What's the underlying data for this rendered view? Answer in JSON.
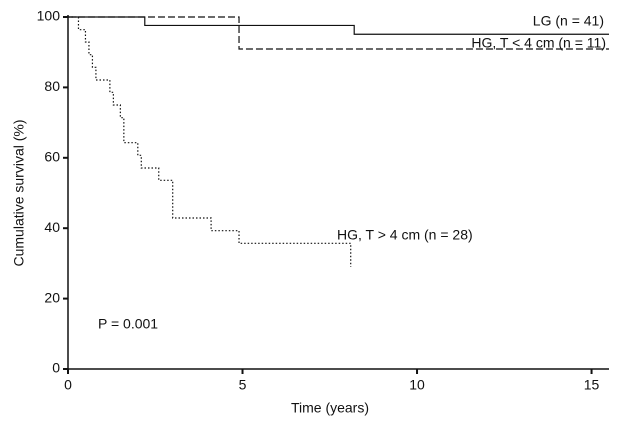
{
  "chart_data": {
    "type": "step",
    "x_label": "Time (years)",
    "y_label": "Cumulative survival (%)",
    "xlim": [
      0,
      15.5
    ],
    "ylim": [
      0,
      100
    ],
    "xticks": [
      0,
      5,
      10,
      15
    ],
    "yticks": [
      0,
      20,
      40,
      60,
      80,
      100
    ],
    "annotation": "P = 0.001",
    "series": [
      {
        "name": "LG (n = 41)",
        "color": "#111111",
        "line_style": "solid",
        "x": [
          0,
          2.2,
          8.2,
          15.5
        ],
        "values": [
          100,
          97.6,
          95.1,
          95.1
        ]
      },
      {
        "name": "HG, T < 4 cm (n = 11)",
        "color": "#111111",
        "line_style": "dashed",
        "x": [
          0,
          4.9,
          15.5
        ],
        "values": [
          100,
          90.9,
          90.9
        ]
      },
      {
        "name": "HG, T > 4 cm (n = 28)",
        "color": "#111111",
        "line_style": "dotted",
        "x": [
          0,
          0.3,
          0.5,
          0.6,
          0.7,
          0.8,
          1.2,
          1.3,
          1.5,
          1.6,
          2.0,
          2.1,
          2.6,
          3.0,
          4.1,
          4.9,
          8.1,
          8.1
        ],
        "values": [
          100,
          96.4,
          92.9,
          89.3,
          85.7,
          82.1,
          78.6,
          75.0,
          71.4,
          64.3,
          60.7,
          57.1,
          53.6,
          42.9,
          39.3,
          35.7,
          35.7,
          29.0
        ]
      }
    ]
  }
}
